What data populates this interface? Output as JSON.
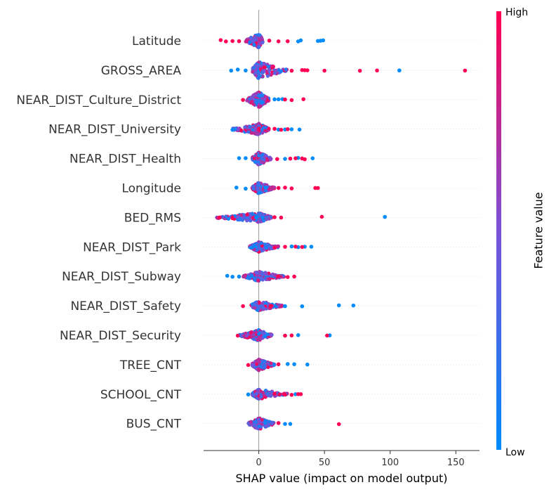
{
  "chart_data": {
    "type": "scatter",
    "subtype": "shap-beeswarm",
    "xlabel": "SHAP value (impact on model output)",
    "xlim": [
      -42,
      168
    ],
    "xticks": [
      0,
      50,
      100,
      150
    ],
    "colorbar": {
      "title": "Feature value",
      "high_label": "High",
      "low_label": "Low",
      "low_color": "#008bfb",
      "high_color": "#ff0052"
    },
    "features": [
      {
        "name": "Latitude",
        "core_min": -10,
        "core_max": 3,
        "peak": 10,
        "blue_points": [
          30,
          32,
          45,
          47,
          49
        ],
        "red_points": [
          -29,
          -25,
          -20,
          -15,
          8,
          15,
          22
        ]
      },
      {
        "name": "GROSS_AREA",
        "core_min": -5,
        "core_max": 22,
        "peak": 12,
        "blue_points": [
          -21,
          -16,
          -10,
          107
        ],
        "red_points": [
          25,
          33,
          35,
          37,
          50,
          77,
          90,
          157
        ]
      },
      {
        "name": "NEAR_DIST_Culture_District",
        "core_min": -9,
        "core_max": 8,
        "peak": 11,
        "blue_points": [
          12,
          15,
          18
        ],
        "red_points": [
          -12,
          20,
          25,
          34
        ]
      },
      {
        "name": "NEAR_DIST_University",
        "core_min": -20,
        "core_max": 8,
        "peak": 8,
        "blue_points": [
          -20,
          15,
          20,
          25,
          31
        ],
        "red_points": [
          12,
          17,
          22
        ]
      },
      {
        "name": "NEAR_DIST_Health",
        "core_min": -5,
        "core_max": 10,
        "peak": 9,
        "blue_points": [
          -15,
          -10,
          20,
          30,
          41
        ],
        "red_points": [
          14,
          24,
          28,
          33,
          35
        ]
      },
      {
        "name": "Longitude",
        "core_min": -5,
        "core_max": 12,
        "peak": 8,
        "blue_points": [
          -17,
          -10,
          5
        ],
        "red_points": [
          15,
          20,
          25,
          43,
          45
        ]
      },
      {
        "name": "BED_RMS",
        "core_min": -32,
        "core_max": 10,
        "peak": 7,
        "blue_points": [
          -2,
          3,
          96
        ],
        "red_points": [
          -30,
          -20,
          12,
          17,
          48
        ]
      },
      {
        "name": "NEAR_DIST_Park",
        "core_min": -7,
        "core_max": 15,
        "peak": 7,
        "blue_points": [
          25,
          30,
          35,
          40
        ],
        "red_points": [
          12,
          20,
          28,
          33
        ]
      },
      {
        "name": "NEAR_DIST_Subway",
        "core_min": -12,
        "core_max": 20,
        "peak": 7,
        "blue_points": [
          -24,
          -20,
          -15
        ],
        "red_points": [
          15,
          22,
          27
        ]
      },
      {
        "name": "NEAR_DIST_Safety",
        "core_min": -6,
        "core_max": 18,
        "peak": 7,
        "blue_points": [
          20,
          33,
          61,
          72
        ],
        "red_points": [
          -12,
          9
        ]
      },
      {
        "name": "NEAR_DIST_Security",
        "core_min": -15,
        "core_max": 10,
        "peak": 8,
        "blue_points": [
          20,
          30,
          54
        ],
        "red_points": [
          -16,
          20,
          25,
          52
        ]
      },
      {
        "name": "TREE_CNT",
        "core_min": -5,
        "core_max": 12,
        "peak": 8,
        "blue_points": [
          22,
          27,
          37
        ],
        "red_points": [
          -8,
          15
        ]
      },
      {
        "name": "SCHOOL_CNT",
        "core_min": -5,
        "core_max": 22,
        "peak": 7,
        "blue_points": [
          -8,
          28
        ],
        "red_points": [
          12,
          20,
          25,
          30,
          32
        ]
      },
      {
        "name": "BUS_CNT",
        "core_min": -8,
        "core_max": 12,
        "peak": 8,
        "blue_points": [
          20,
          24
        ],
        "red_points": [
          15,
          61
        ]
      }
    ]
  }
}
